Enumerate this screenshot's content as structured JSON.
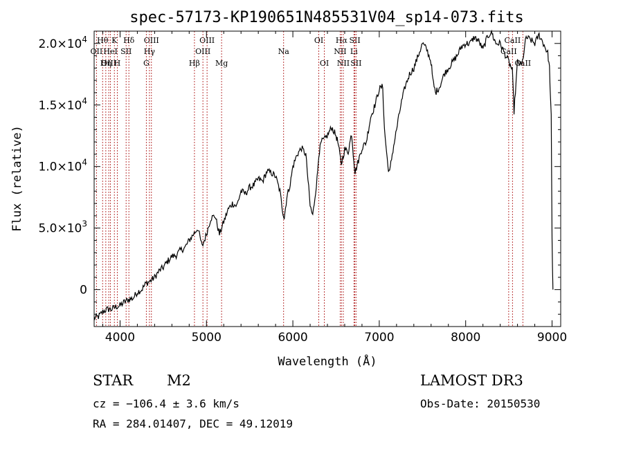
{
  "info": {
    "object_class": "STAR",
    "subclass": "M2",
    "survey": "LAMOST DR3",
    "cz": "cz = −106.4 ± 3.6 km/s",
    "obs_date": "Obs-Date: 20150530",
    "coords": "RA = 284.01407, DEC =  49.12019"
  },
  "colors": {
    "spectrum": "#000000",
    "lines": "#b22222",
    "axes": "#000000"
  },
  "chart_data": {
    "type": "line",
    "title": "spec-57173-KP190651N485531V04_sp14-073.fits",
    "xlabel": "Wavelength (Å)",
    "ylabel": "Flux (relative)",
    "xlim": [
      3700,
      9100
    ],
    "ylim": [
      -3000,
      21000
    ],
    "xticks": [
      {
        "value": 4000,
        "label": "4000"
      },
      {
        "value": 5000,
        "label": "5000"
      },
      {
        "value": 6000,
        "label": "6000"
      },
      {
        "value": 7000,
        "label": "7000"
      },
      {
        "value": 8000,
        "label": "8000"
      },
      {
        "value": 9000,
        "label": "9000"
      }
    ],
    "yticks": [
      {
        "value": 0,
        "mant": "0",
        "exp": ""
      },
      {
        "value": 5000,
        "mant": "5.0×10",
        "exp": "3"
      },
      {
        "value": 10000,
        "mant": "1.0×10",
        "exp": "4"
      },
      {
        "value": 15000,
        "mant": "1.5×10",
        "exp": "4"
      },
      {
        "value": 20000,
        "mant": "2.0×10",
        "exp": "4"
      }
    ],
    "series": [
      {
        "name": "flux",
        "x": [
          3700,
          3750,
          3800,
          3850,
          3900,
          3950,
          4000,
          4050,
          4100,
          4150,
          4200,
          4250,
          4300,
          4350,
          4400,
          4450,
          4500,
          4550,
          4600,
          4650,
          4700,
          4750,
          4800,
          4850,
          4900,
          4950,
          5000,
          5050,
          5100,
          5150,
          5200,
          5250,
          5300,
          5350,
          5400,
          5450,
          5500,
          5550,
          5600,
          5650,
          5700,
          5750,
          5800,
          5850,
          5880,
          5900,
          5930,
          5970,
          6000,
          6050,
          6100,
          6150,
          6200,
          6230,
          6280,
          6300,
          6330,
          6380,
          6420,
          6450,
          6500,
          6520,
          6560,
          6600,
          6640,
          6680,
          6700,
          6720,
          6760,
          6800,
          6850,
          6900,
          6950,
          7000,
          7040,
          7060,
          7100,
          7120,
          7150,
          7200,
          7250,
          7300,
          7350,
          7400,
          7450,
          7500,
          7550,
          7600,
          7620,
          7650,
          7700,
          7750,
          7800,
          7850,
          7900,
          7950,
          8000,
          8050,
          8100,
          8150,
          8200,
          8250,
          8300,
          8320,
          8350,
          8400,
          8450,
          8500,
          8540,
          8560,
          8600,
          8650,
          8700,
          8750,
          8800,
          8850,
          8900,
          8950,
          8970,
          8990,
          9000,
          9010
        ],
        "y": [
          -2300,
          -2200,
          -1800,
          -1600,
          -1600,
          -1400,
          -1300,
          -1000,
          -800,
          -700,
          -200,
          0,
          500,
          700,
          1000,
          1500,
          1800,
          2300,
          2700,
          2800,
          3200,
          3400,
          4000,
          4500,
          5000,
          3500,
          4500,
          5800,
          6000,
          4500,
          5500,
          6500,
          7000,
          6800,
          8000,
          7800,
          8300,
          8500,
          9000,
          8800,
          9600,
          9500,
          9200,
          8000,
          6500,
          5800,
          7500,
          8600,
          10000,
          11000,
          11500,
          11000,
          6800,
          6000,
          9000,
          11000,
          12000,
          12300,
          12800,
          13200,
          12500,
          12000,
          10200,
          11400,
          11200,
          12700,
          11000,
          9500,
          10500,
          11500,
          12000,
          14000,
          15000,
          16300,
          16500,
          13000,
          10000,
          9500,
          11000,
          13000,
          15000,
          16500,
          17500,
          18000,
          19000,
          20000,
          19500,
          18500,
          17000,
          16000,
          16500,
          17500,
          18000,
          18500,
          19000,
          19700,
          20000,
          20000,
          20500,
          20200,
          19500,
          20500,
          21000,
          20500,
          20000,
          20000,
          19200,
          18500,
          17800,
          14500,
          18500,
          18200,
          20500,
          20300,
          20000,
          20700,
          20000,
          19200,
          18000,
          14000,
          4000,
          0
        ]
      }
    ],
    "spectral_lines": [
      {
        "name": "Hθ",
        "wl": 3798,
        "row": 1
      },
      {
        "name": "OII",
        "wl": 3727,
        "row": 2
      },
      {
        "name": "OIII",
        "wl": 3869,
        "row": 3
      },
      {
        "name": "K",
        "wl": 3934,
        "row": 1
      },
      {
        "name": "HeI",
        "wl": 3889,
        "row": 2
      },
      {
        "name": "Hη",
        "wl": 3835,
        "row": 3
      },
      {
        "name": "SII",
        "wl": 4070,
        "row": 2
      },
      {
        "name": "H",
        "wl": 3968,
        "row": 3
      },
      {
        "name": "Hδ",
        "wl": 4102,
        "row": 1
      },
      {
        "name": "OIII",
        "wl": 4363,
        "row": 1
      },
      {
        "name": "Hγ",
        "wl": 4340,
        "row": 2
      },
      {
        "name": "G",
        "wl": 4304,
        "row": 3
      },
      {
        "name": "Hβ",
        "wl": 4861,
        "row": 3
      },
      {
        "name": "OIII",
        "wl": 5007,
        "row": 1
      },
      {
        "name": "OIII",
        "wl": 4959,
        "row": 2
      },
      {
        "name": "Mg",
        "wl": 5175,
        "row": 3
      },
      {
        "name": "Na",
        "wl": 5893,
        "row": 2
      },
      {
        "name": "OI",
        "wl": 6300,
        "row": 1
      },
      {
        "name": "OI",
        "wl": 6364,
        "row": 3
      },
      {
        "name": "Hα",
        "wl": 6563,
        "row": 1
      },
      {
        "name": "SII",
        "wl": 6717,
        "row": 1
      },
      {
        "name": "NII",
        "wl": 6548,
        "row": 2
      },
      {
        "name": "Li",
        "wl": 6707,
        "row": 2
      },
      {
        "name": "NII",
        "wl": 6584,
        "row": 3
      },
      {
        "name": "SII",
        "wl": 6731,
        "row": 3
      },
      {
        "name": "CaII",
        "wl": 8542,
        "row": 1
      },
      {
        "name": "CaII",
        "wl": 8498,
        "row": 2
      },
      {
        "name": "CaII",
        "wl": 8662,
        "row": 3
      }
    ]
  }
}
